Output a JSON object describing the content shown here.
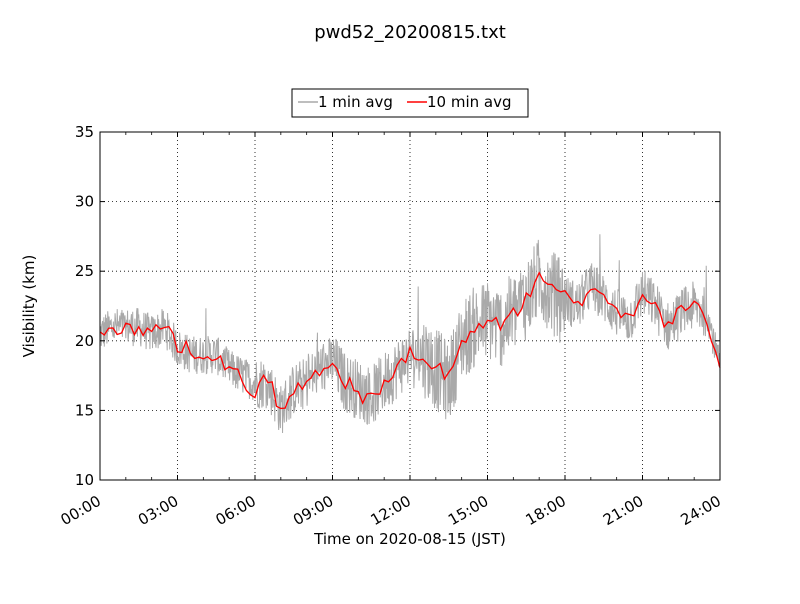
{
  "chart_data": {
    "type": "line",
    "title": "pwd52_20200815.txt",
    "xlabel": "Time on 2020-08-15 (JST)",
    "ylabel": "Visibility (km)",
    "xlim": [
      "00:00",
      "24:00"
    ],
    "ylim": [
      10,
      35
    ],
    "x_ticks": [
      "00:00",
      "03:00",
      "06:00",
      "09:00",
      "12:00",
      "15:00",
      "18:00",
      "21:00",
      "24:00"
    ],
    "y_ticks": [
      "10",
      "15",
      "20",
      "25",
      "30",
      "35"
    ],
    "grid": true,
    "legend_position": "top-center (above plot)",
    "series": [
      {
        "name": "1 min avg",
        "color": "#a9a9a9",
        "x_hours": [
          0,
          0.5,
          1,
          1.5,
          2,
          2.5,
          3,
          3.5,
          4,
          4.5,
          5,
          5.5,
          6,
          6.5,
          7,
          7.5,
          8,
          8.5,
          9,
          9.5,
          10,
          10.5,
          11,
          11.5,
          12,
          12.5,
          13,
          13.5,
          14,
          14.5,
          15,
          15.5,
          16,
          16.5,
          17,
          17.5,
          18,
          18.5,
          19,
          19.5,
          20,
          20.5,
          21,
          21.5,
          22,
          22.5,
          23,
          23.5,
          24
        ],
        "values": [
          20.5,
          21,
          21,
          21,
          20.5,
          21,
          19.5,
          19,
          19,
          19,
          18,
          17.5,
          17,
          17,
          15,
          16.5,
          17,
          18,
          18.5,
          17,
          16.5,
          16,
          17,
          18,
          19,
          19,
          18,
          17,
          20,
          21,
          21.5,
          21,
          22,
          23,
          24.5,
          23.5,
          23,
          22.5,
          24,
          23,
          22,
          21.5,
          23.5,
          22.5,
          21,
          22,
          22.5,
          22,
          18
        ]
      },
      {
        "name": "10 min avg",
        "color": "#ff0000",
        "x_hours": [
          0,
          0.5,
          1,
          1.5,
          2,
          2.5,
          3,
          3.5,
          4,
          4.5,
          5,
          5.5,
          6,
          6.5,
          7,
          7.5,
          8,
          8.5,
          9,
          9.5,
          10,
          10.5,
          11,
          11.5,
          12,
          12.5,
          13,
          13.5,
          14,
          14.5,
          15,
          15.5,
          16,
          16.5,
          17,
          17.5,
          18,
          18.5,
          19,
          19.5,
          20,
          20.5,
          21,
          21.5,
          22,
          22.5,
          23,
          23.5,
          24
        ],
        "values": [
          20.3,
          20.8,
          21.2,
          20.6,
          20.7,
          21.2,
          19.7,
          19.3,
          19.2,
          19.0,
          17.8,
          17.3,
          16.2,
          17.5,
          14.8,
          16.4,
          16.9,
          18.0,
          18.3,
          17.1,
          16.2,
          15.8,
          16.9,
          18.0,
          19.0,
          18.5,
          18.2,
          17.3,
          19.8,
          20.6,
          21.8,
          21.0,
          22.0,
          22.9,
          25.0,
          23.6,
          23.2,
          22.4,
          24.0,
          23.3,
          22.2,
          21.6,
          23.6,
          22.4,
          21.0,
          22.2,
          22.5,
          21.6,
          17.8
        ]
      }
    ]
  }
}
